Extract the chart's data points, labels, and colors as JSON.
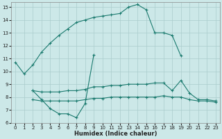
{
  "xlabel": "Humidex (Indice chaleur)",
  "xlim": [
    -0.5,
    23.5
  ],
  "ylim": [
    6,
    15.4
  ],
  "yticks": [
    6,
    7,
    8,
    9,
    10,
    11,
    12,
    13,
    14,
    15
  ],
  "xticks": [
    0,
    1,
    2,
    3,
    4,
    5,
    6,
    7,
    8,
    9,
    10,
    11,
    12,
    13,
    14,
    15,
    16,
    17,
    18,
    19,
    20,
    21,
    22,
    23
  ],
  "line_color": "#1a7a6e",
  "bg_color": "#cce8e8",
  "grid_color": "#aacccc",
  "line1": {
    "x": [
      0,
      1,
      2,
      3,
      4,
      5,
      6,
      7,
      8,
      9,
      10,
      11,
      12,
      13,
      14,
      15,
      16,
      17,
      18,
      19
    ],
    "y": [
      10.7,
      9.8,
      10.5,
      11.5,
      12.2,
      12.8,
      13.3,
      13.8,
      14.0,
      14.2,
      14.3,
      14.4,
      14.5,
      15.0,
      15.2,
      14.8,
      13.0,
      13.0,
      12.8,
      11.2
    ]
  },
  "line2": {
    "x": [
      8,
      9,
      10,
      11,
      12,
      13,
      14,
      15,
      16,
      17,
      18,
      19
    ],
    "y": [
      13.8,
      14.0,
      14.0,
      14.2,
      14.3,
      15.0,
      15.2,
      14.8,
      13.0,
      13.0,
      12.8,
      11.2
    ]
  },
  "line3": {
    "x": [
      2,
      3,
      4,
      5,
      6,
      7,
      8,
      9
    ],
    "y": [
      8.5,
      7.8,
      7.1,
      6.7,
      6.7,
      6.4,
      7.5,
      11.3
    ]
  },
  "line4": {
    "x": [
      2,
      3,
      4,
      5,
      6,
      7,
      8,
      9,
      10,
      11,
      12,
      13,
      14,
      15,
      16,
      17,
      18,
      19,
      20,
      21,
      22,
      23
    ],
    "y": [
      8.5,
      8.4,
      8.4,
      8.4,
      8.5,
      8.5,
      8.6,
      8.8,
      8.8,
      8.9,
      8.9,
      9.0,
      9.0,
      9.0,
      9.1,
      9.1,
      8.5,
      9.3,
      8.3,
      7.8,
      7.8,
      7.7
    ]
  },
  "line5": {
    "x": [
      2,
      3,
      4,
      5,
      6,
      7,
      8,
      9,
      10,
      11,
      12,
      13,
      14,
      15,
      16,
      17,
      18,
      19,
      20,
      21,
      22,
      23
    ],
    "y": [
      7.8,
      7.7,
      7.7,
      7.7,
      7.7,
      7.7,
      7.8,
      7.9,
      7.9,
      8.0,
      8.0,
      8.0,
      8.0,
      8.0,
      8.0,
      8.1,
      8.0,
      8.0,
      7.8,
      7.7,
      7.7,
      7.6
    ]
  }
}
